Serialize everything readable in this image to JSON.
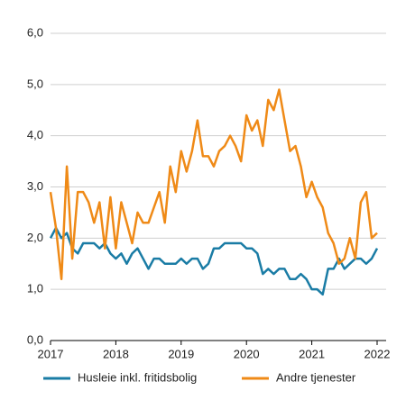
{
  "chart_data": {
    "type": "line",
    "x": [
      2017,
      2017.083,
      2017.167,
      2017.25,
      2017.333,
      2017.417,
      2017.5,
      2017.583,
      2017.667,
      2017.75,
      2017.833,
      2017.917,
      2018,
      2018.083,
      2018.167,
      2018.25,
      2018.333,
      2018.417,
      2018.5,
      2018.583,
      2018.667,
      2018.75,
      2018.833,
      2018.917,
      2019,
      2019.083,
      2019.167,
      2019.25,
      2019.333,
      2019.417,
      2019.5,
      2019.583,
      2019.667,
      2019.75,
      2019.833,
      2019.917,
      2020,
      2020.083,
      2020.167,
      2020.25,
      2020.333,
      2020.417,
      2020.5,
      2020.583,
      2020.667,
      2020.75,
      2020.833,
      2020.917,
      2021,
      2021.083,
      2021.167,
      2021.25,
      2021.333,
      2021.417,
      2021.5,
      2021.583,
      2021.667,
      2021.75,
      2021.833,
      2021.917,
      2022
    ],
    "series": [
      {
        "name": "Husleie inkl. fritidsbolig",
        "color": "#1a7ca5",
        "values": [
          2.0,
          2.2,
          2.0,
          2.1,
          1.8,
          1.7,
          1.9,
          1.9,
          1.9,
          1.8,
          1.9,
          1.7,
          1.6,
          1.7,
          1.5,
          1.7,
          1.8,
          1.6,
          1.4,
          1.6,
          1.6,
          1.5,
          1.5,
          1.5,
          1.6,
          1.5,
          1.6,
          1.6,
          1.4,
          1.5,
          1.8,
          1.8,
          1.9,
          1.9,
          1.9,
          1.9,
          1.8,
          1.8,
          1.7,
          1.3,
          1.4,
          1.3,
          1.4,
          1.4,
          1.2,
          1.2,
          1.3,
          1.2,
          1.0,
          1.0,
          0.9,
          1.4,
          1.4,
          1.6,
          1.4,
          1.5,
          1.6,
          1.6,
          1.5,
          1.6,
          1.8
        ]
      },
      {
        "name": "Andre tjenester",
        "color": "#ef8a17",
        "values": [
          2.9,
          2.2,
          1.2,
          3.4,
          1.6,
          2.9,
          2.9,
          2.7,
          2.3,
          2.7,
          1.8,
          2.8,
          1.8,
          2.7,
          2.3,
          1.9,
          2.5,
          2.3,
          2.3,
          2.6,
          2.9,
          2.3,
          3.4,
          2.9,
          3.7,
          3.3,
          3.7,
          4.3,
          3.6,
          3.6,
          3.4,
          3.7,
          3.8,
          4.0,
          3.8,
          3.5,
          4.4,
          4.1,
          4.3,
          3.8,
          4.7,
          4.5,
          4.9,
          4.3,
          3.7,
          3.8,
          3.4,
          2.8,
          3.1,
          2.8,
          2.6,
          2.1,
          1.9,
          1.5,
          1.6,
          2.0,
          1.6,
          2.7,
          2.9,
          2.0,
          2.1
        ]
      }
    ],
    "xlim": [
      2017,
      2022
    ],
    "xticks": [
      2017,
      2018,
      2019,
      2020,
      2021,
      2022
    ],
    "ylim": [
      0,
      6
    ],
    "yticks": [
      {
        "value": 0,
        "label": "0,0"
      },
      {
        "value": 1,
        "label": "1,0"
      },
      {
        "value": 2,
        "label": "2,0"
      },
      {
        "value": 3,
        "label": "3,0"
      },
      {
        "value": 4,
        "label": "4,0"
      },
      {
        "value": 5,
        "label": "5,0"
      },
      {
        "value": 6,
        "label": "6,0"
      }
    ],
    "grid": true,
    "legend": "bottom"
  }
}
